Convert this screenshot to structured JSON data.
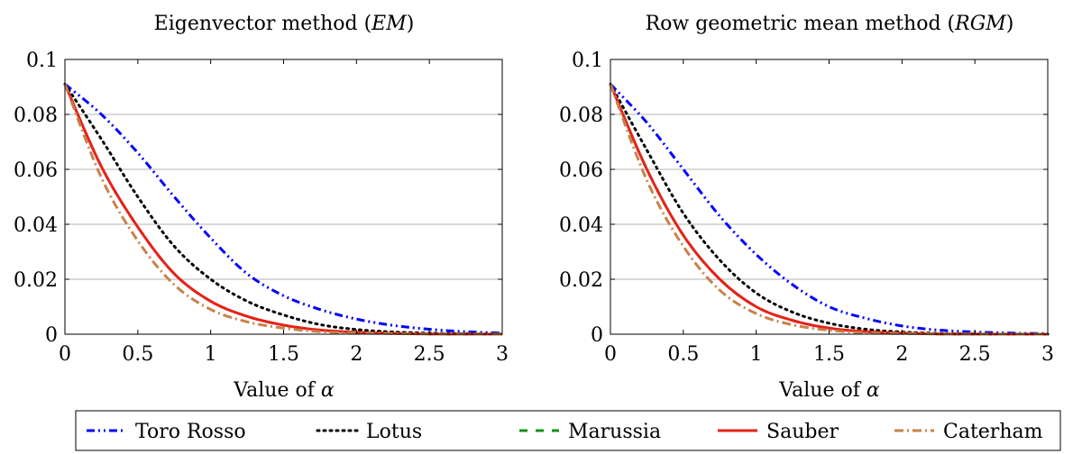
{
  "chart_data": [
    {
      "type": "line",
      "title_prefix": "Eigenvector method (",
      "title_symbol": "EM",
      "title_suffix": ")",
      "xlabel_prefix": "Value of ",
      "xlabel_symbol": "α",
      "ylabel": "",
      "xlim": [
        0,
        3
      ],
      "ylim": [
        0,
        0.1
      ],
      "xticks": [
        "0",
        "0.5",
        "1",
        "1.5",
        "2",
        "2.5",
        "3"
      ],
      "yticks": [
        "0",
        "0.02",
        "0.04",
        "0.06",
        "0.08",
        "0.1"
      ],
      "grid": "horizontal",
      "x": [
        0,
        0.25,
        0.5,
        0.75,
        1,
        1.25,
        1.5,
        1.75,
        2,
        2.25,
        2.5,
        2.75,
        3
      ],
      "series": [
        {
          "name": "Toro Rosso",
          "values": [
            0.091,
            0.08,
            0.066,
            0.05,
            0.035,
            0.022,
            0.014,
            0.009,
            0.0055,
            0.0032,
            0.0018,
            0.0009,
            0.0004
          ]
        },
        {
          "name": "Lotus",
          "values": [
            0.091,
            0.071,
            0.05,
            0.032,
            0.02,
            0.012,
            0.007,
            0.0035,
            0.0017,
            0.0008,
            0.0004,
            0.0002,
            0.0001
          ]
        },
        {
          "name": "Marussia",
          "values": [
            0.091,
            0.061,
            0.039,
            0.022,
            0.012,
            0.0065,
            0.0033,
            0.0015,
            0.0007,
            0.0003,
            0.0001,
            5e-05,
            2e-05
          ]
        },
        {
          "name": "Sauber",
          "values": [
            0.091,
            0.061,
            0.039,
            0.022,
            0.012,
            0.0065,
            0.0033,
            0.0015,
            0.0007,
            0.0003,
            0.0001,
            5e-05,
            2e-05
          ]
        },
        {
          "name": "Caterham",
          "values": [
            0.091,
            0.057,
            0.034,
            0.018,
            0.009,
            0.0045,
            0.0022,
            0.0009,
            0.0004,
            0.0002,
            8e-05,
            3e-05,
            1e-05
          ]
        }
      ]
    },
    {
      "type": "line",
      "title_prefix": "Row geometric mean method (",
      "title_symbol": "RGM",
      "title_suffix": ")",
      "xlabel_prefix": "Value of ",
      "xlabel_symbol": "α",
      "ylabel": "",
      "xlim": [
        0,
        3
      ],
      "ylim": [
        0,
        0.1
      ],
      "xticks": [
        "0",
        "0.5",
        "1",
        "1.5",
        "2",
        "2.5",
        "3"
      ],
      "yticks": [
        "0",
        "0.02",
        "0.04",
        "0.06",
        "0.08",
        "0.1"
      ],
      "grid": "horizontal",
      "x": [
        0,
        0.25,
        0.5,
        0.75,
        1,
        1.25,
        1.5,
        1.75,
        2,
        2.25,
        2.5,
        2.75,
        3
      ],
      "series": [
        {
          "name": "Toro Rosso",
          "values": [
            0.091,
            0.077,
            0.06,
            0.043,
            0.029,
            0.018,
            0.01,
            0.0058,
            0.003,
            0.0015,
            0.0008,
            0.0004,
            0.0002
          ]
        },
        {
          "name": "Lotus",
          "values": [
            0.091,
            0.067,
            0.044,
            0.027,
            0.015,
            0.008,
            0.004,
            0.0018,
            0.0008,
            0.0003,
            0.0001,
            5e-05,
            2e-05
          ]
        },
        {
          "name": "Marussia",
          "values": [
            0.091,
            0.06,
            0.036,
            0.02,
            0.01,
            0.005,
            0.0022,
            0.0009,
            0.0004,
            0.0001,
            5e-05,
            2e-05,
            1e-05
          ]
        },
        {
          "name": "Sauber",
          "values": [
            0.091,
            0.06,
            0.036,
            0.02,
            0.01,
            0.005,
            0.0022,
            0.0009,
            0.0004,
            0.0001,
            5e-05,
            2e-05,
            1e-05
          ]
        },
        {
          "name": "Caterham",
          "values": [
            0.091,
            0.056,
            0.032,
            0.016,
            0.0075,
            0.0034,
            0.0014,
            0.0005,
            0.0002,
            0.0001,
            3e-05,
            1e-05,
            0.0
          ]
        }
      ]
    }
  ],
  "legend": {
    "placement": "bottom",
    "entries": [
      {
        "label": "Toro Rosso",
        "color": "#0000ff",
        "dash": "dash-dot-dot"
      },
      {
        "label": "Lotus",
        "color": "#000000",
        "dash": "dotted"
      },
      {
        "label": "Marussia",
        "color": "#1a8f1a",
        "dash": "dashed"
      },
      {
        "label": "Sauber",
        "color": "#e8211a",
        "dash": "solid"
      },
      {
        "label": "Caterham",
        "color": "#c6834a",
        "dash": "dash-dot"
      }
    ]
  }
}
